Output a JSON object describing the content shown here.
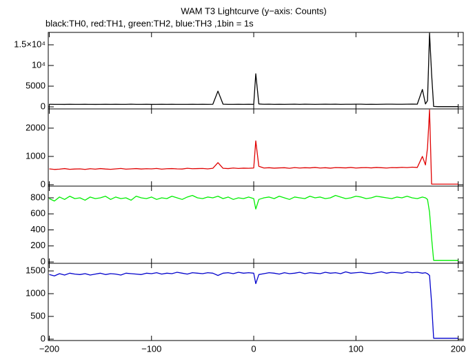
{
  "chart_data": {
    "type": "line",
    "title": "WAM T3 Lightcurve (y−axis: Counts)",
    "subtitle": "black:TH0, red:TH1, green:TH2, blue:TH3 ,1bin = 1s",
    "x": [
      -200,
      -195,
      -190,
      -185,
      -180,
      -175,
      -170,
      -165,
      -160,
      -155,
      -150,
      -145,
      -140,
      -135,
      -130,
      -125,
      -120,
      -115,
      -110,
      -105,
      -100,
      -95,
      -90,
      -85,
      -80,
      -75,
      -70,
      -65,
      -60,
      -55,
      -50,
      -45,
      -40,
      -35,
      -30,
      -25,
      -20,
      -15,
      -10,
      -5,
      0,
      2,
      5,
      10,
      15,
      20,
      25,
      30,
      35,
      40,
      45,
      50,
      55,
      60,
      65,
      70,
      75,
      80,
      85,
      90,
      95,
      100,
      105,
      110,
      115,
      120,
      125,
      130,
      135,
      140,
      145,
      150,
      155,
      160,
      165,
      168,
      170,
      172,
      174,
      176,
      180,
      185,
      190,
      195,
      200
    ],
    "xlim": [
      -201,
      205
    ],
    "xticks": [
      {
        "value": -200,
        "label": "−200"
      },
      {
        "value": -100,
        "label": "−100"
      },
      0,
      100,
      200
    ],
    "series": [
      {
        "color": "#000000",
        "ylim": [
          -500,
          18000
        ],
        "yticks": [
          0,
          5000,
          {
            "value": 10000,
            "label": "10⁴"
          },
          {
            "value": 15000,
            "label": "1.5×10⁴"
          }
        ],
        "values": [
          620,
          600,
          610,
          590,
          630,
          600,
          610,
          620,
          600,
          590,
          610,
          630,
          600,
          620,
          610,
          600,
          640,
          610,
          600,
          620,
          590,
          610,
          630,
          600,
          620,
          600,
          610,
          600,
          620,
          610,
          630,
          600,
          620,
          3800,
          640,
          610,
          600,
          620,
          610,
          630,
          600,
          8000,
          700,
          620,
          640,
          610,
          630,
          600,
          620,
          650,
          610,
          640,
          620,
          600,
          630,
          650,
          620,
          640,
          610,
          630,
          620,
          650,
          640,
          610,
          630,
          600,
          620,
          640,
          650,
          620,
          630,
          640,
          660,
          650,
          4200,
          700,
          1500,
          17800,
          8000,
          100,
          50,
          50,
          50,
          50,
          50
        ]
      },
      {
        "color": "#e00000",
        "ylim": [
          -50,
          2680
        ],
        "yticks": [
          0,
          1000,
          2000
        ],
        "values": [
          560,
          540,
          550,
          570,
          545,
          555,
          560,
          540,
          565,
          550,
          570,
          555,
          545,
          560,
          575,
          550,
          560,
          570,
          555,
          565,
          560,
          575,
          550,
          565,
          570,
          560,
          555,
          580,
          565,
          570,
          575,
          560,
          580,
          780,
          580,
          570,
          590,
          575,
          585,
          580,
          590,
          1550,
          650,
          590,
          600,
          585,
          595,
          600,
          580,
          605,
          590,
          600,
          595,
          610,
          590,
          600,
          585,
          605,
          600,
          595,
          610,
          590,
          600,
          605,
          595,
          610,
          600,
          590,
          605,
          600,
          615,
          605,
          620,
          610,
          1000,
          700,
          1300,
          2650,
          20,
          20,
          20,
          20,
          20,
          20,
          20
        ]
      },
      {
        "color": "#00ee00",
        "ylim": [
          -17,
          946
        ],
        "yticks": [
          0,
          200,
          400,
          600,
          800
        ],
        "values": [
          790,
          760,
          810,
          780,
          820,
          790,
          800,
          770,
          810,
          790,
          800,
          820,
          780,
          810,
          790,
          800,
          770,
          820,
          800,
          790,
          810,
          780,
          800,
          790,
          820,
          800,
          780,
          810,
          830,
          800,
          790,
          810,
          800,
          820,
          790,
          810,
          780,
          800,
          790,
          810,
          790,
          660,
          780,
          800,
          810,
          790,
          820,
          800,
          780,
          810,
          800,
          790,
          820,
          800,
          810,
          790,
          800,
          830,
          810,
          790,
          800,
          820,
          810,
          790,
          800,
          820,
          810,
          800,
          790,
          810,
          800,
          820,
          800,
          790,
          810,
          800,
          780,
          620,
          300,
          20,
          20,
          20,
          20,
          20,
          20
        ]
      },
      {
        "color": "#0000cc",
        "ylim": [
          -30,
          1667
        ],
        "yticks": [
          0,
          500,
          1000,
          1500
        ],
        "values": [
          1420,
          1390,
          1440,
          1410,
          1450,
          1430,
          1420,
          1440,
          1410,
          1430,
          1450,
          1420,
          1440,
          1430,
          1410,
          1450,
          1440,
          1430,
          1420,
          1450,
          1440,
          1460,
          1430,
          1450,
          1440,
          1470,
          1450,
          1430,
          1460,
          1450,
          1440,
          1460,
          1450,
          1400,
          1450,
          1460,
          1440,
          1470,
          1450,
          1460,
          1450,
          1220,
          1420,
          1440,
          1460,
          1450,
          1430,
          1460,
          1440,
          1450,
          1470,
          1440,
          1460,
          1450,
          1440,
          1470,
          1450,
          1460,
          1440,
          1480,
          1450,
          1460,
          1470,
          1450,
          1440,
          1460,
          1480,
          1450,
          1470,
          1460,
          1450,
          1480,
          1460,
          1470,
          1450,
          1460,
          1440,
          1400,
          800,
          20,
          20,
          20,
          20,
          20,
          20
        ]
      }
    ]
  }
}
